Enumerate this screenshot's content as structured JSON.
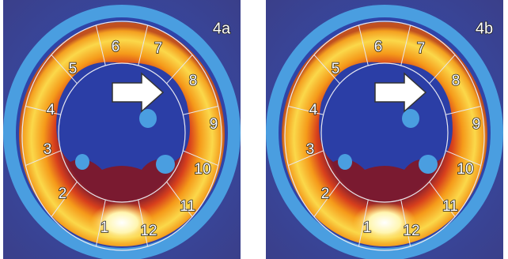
{
  "panels": [
    {
      "label": "4a",
      "segments": [
        "1",
        "2",
        "3",
        "4",
        "5",
        "6",
        "7",
        "8",
        "9",
        "10",
        "11",
        "12"
      ]
    },
    {
      "label": "4b",
      "segments": [
        "1",
        "2",
        "3",
        "4",
        "5",
        "6",
        "7",
        "8",
        "9",
        "10",
        "11",
        "12"
      ]
    }
  ]
}
